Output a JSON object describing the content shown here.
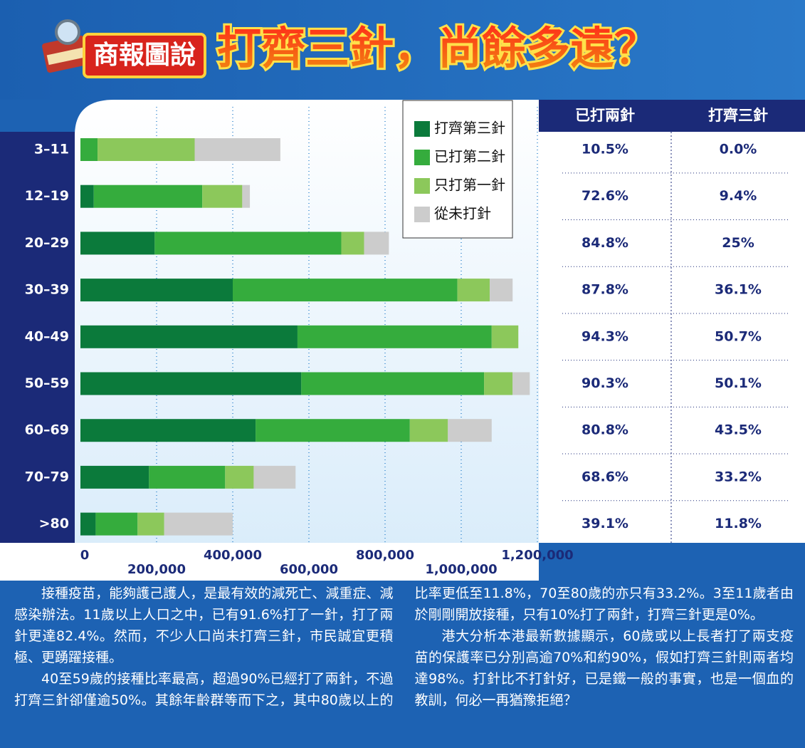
{
  "header": {
    "badge": "商報圖說",
    "title": "打齊三針，尚餘多遠？"
  },
  "chart_data": {
    "type": "bar",
    "orientation": "horizontal",
    "stacked": true,
    "categories": [
      "3–11",
      "12–19",
      "20–29",
      "30–39",
      "40–49",
      "50–59",
      "60–69",
      "70–79",
      ">80"
    ],
    "series": [
      {
        "name": "打齊第三針",
        "color": "#0b7a3b",
        "values": [
          0,
          35000,
          195000,
          400000,
          570000,
          580000,
          460000,
          180000,
          40000
        ]
      },
      {
        "name": "已打第二針",
        "color": "#35ac3d",
        "values": [
          45000,
          285000,
          490000,
          590000,
          510000,
          480000,
          405000,
          200000,
          110000
        ]
      },
      {
        "name": "只打第一針",
        "color": "#8cc85b",
        "values": [
          255000,
          105000,
          60000,
          85000,
          70000,
          75000,
          100000,
          75000,
          70000
        ]
      },
      {
        "name": "從未打針",
        "color": "#cccccc",
        "values": [
          225000,
          20000,
          65000,
          60000,
          0,
          45000,
          115000,
          110000,
          180000
        ]
      }
    ],
    "xlim": [
      0,
      1200000
    ],
    "xticks": [
      0,
      {
        "value": 200000,
        "label": "200,000"
      },
      {
        "value": 400000,
        "label": "400,000"
      },
      {
        "value": 600000,
        "label": "600,000"
      },
      {
        "value": 800000,
        "label": "800,000"
      },
      {
        "value": 1000000,
        "label": "1,000,000"
      },
      {
        "value": 1200000,
        "label": "1,200,000"
      }
    ],
    "grid": true,
    "legend": "upper right"
  },
  "table": {
    "headers": [
      "已打兩針",
      "打齊三針"
    ],
    "rows": [
      [
        "10.5%",
        "0.0%"
      ],
      [
        "72.6%",
        "9.4%"
      ],
      [
        "84.8%",
        "25%"
      ],
      [
        "87.8%",
        "36.1%"
      ],
      [
        "94.3%",
        "50.7%"
      ],
      [
        "90.3%",
        "50.1%"
      ],
      [
        "80.8%",
        "43.5%"
      ],
      [
        "68.6%",
        "33.2%"
      ],
      [
        "39.1%",
        "11.8%"
      ]
    ]
  },
  "article": {
    "paragraphs": [
      "接種疫苗，能夠護己護人，是最有效的減死亡、減重症、減感染辦法。11歲以上人口之中，已有91.6%打了一針，打了兩針更達82.4%。然而，不少人口尚未打齊三針，市民誠宜更積極、更踴躍接種。",
      "40至59歲的接種比率最高，超過90%已經打了兩針，不過打齊三針卻僅逾50%。其餘年齡群等而下之，其中80歲以上的比率更低至11.8%，70至80歲的亦只有33.2%。3至11歲者由於剛剛開放接種，只有10%打了兩針，打齊三針更是0%。",
      "港大分析本港最新數據顯示，60歲或以上長者打了兩支疫苗的保護率已分別高逾70%和約90%，假如打齊三針則兩者均達98%。打針比不打針好，已是鐵一般的事實，也是一個血的教訓，何必一再猶豫拒絕？"
    ]
  }
}
